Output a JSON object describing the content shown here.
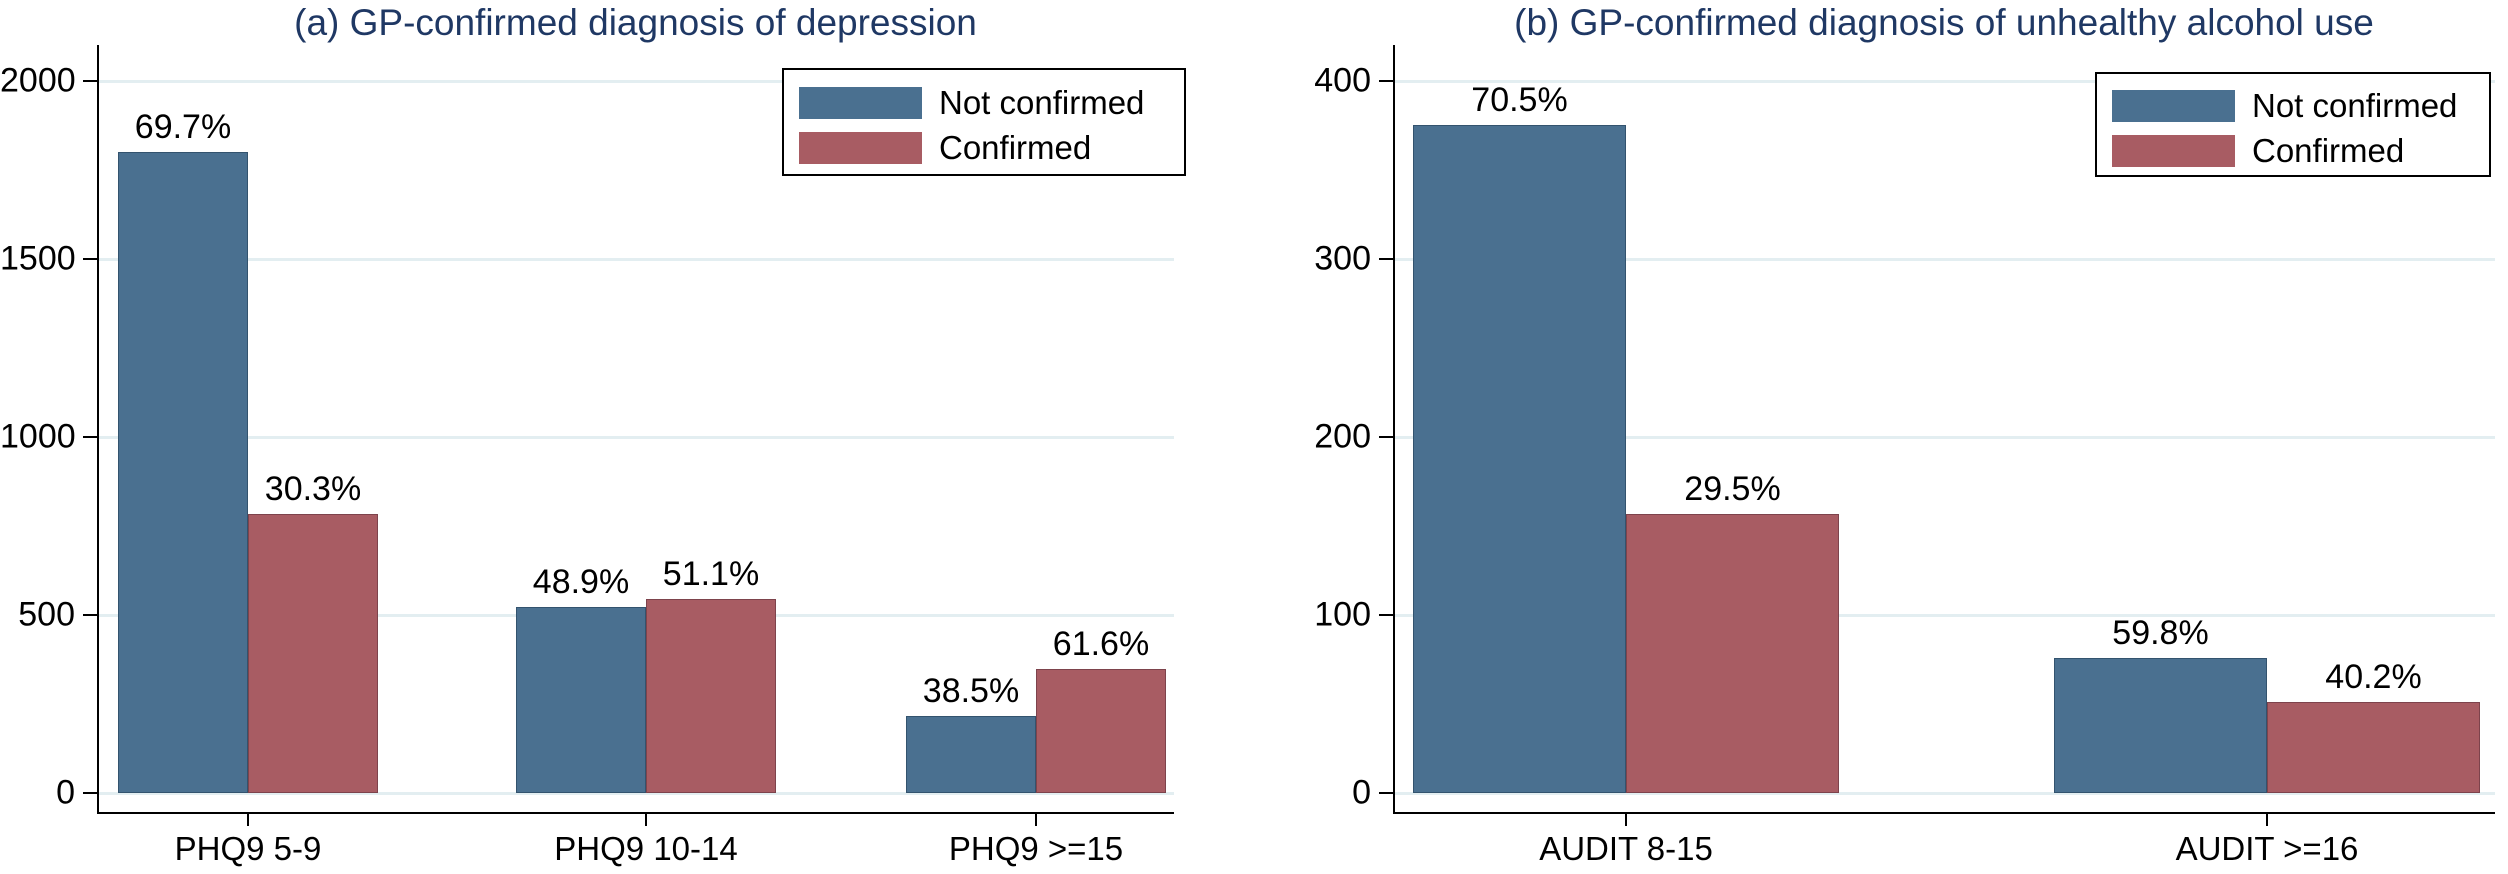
{
  "figure": {
    "background": "#ffffff",
    "title_color": "#1f3864",
    "text_color": "#000000",
    "gridline_color": "#e3eef1",
    "bar_colors": {
      "not_confirmed": "#4a7090",
      "confirmed": "#a85c63"
    },
    "bar_border_colors": {
      "not_confirmed": "#33536e",
      "confirmed": "#7d434c"
    },
    "legend": {
      "position": "top-right",
      "items": [
        {
          "label": "Not confirmed",
          "color_key": "not_confirmed"
        },
        {
          "label": "Confirmed",
          "color_key": "confirmed"
        }
      ]
    }
  },
  "chart_data": [
    {
      "type": "bar",
      "panel": "a",
      "title": "(a) GP-confirmed diagnosis of depression",
      "xlabel": "",
      "ylabel": "",
      "categories": [
        "PHQ9 5-9",
        "PHQ9 10-14",
        "PHQ9 >=15"
      ],
      "series": [
        {
          "name": "Not confirmed",
          "color_key": "not_confirmed",
          "values": [
            1800,
            523,
            217
          ],
          "bar_labels": [
            "69.7%",
            "48.9%",
            "38.5%"
          ]
        },
        {
          "name": "Confirmed",
          "color_key": "confirmed",
          "values": [
            783,
            546,
            347
          ],
          "bar_labels": [
            "30.3%",
            "51.1%",
            "61.6%"
          ]
        }
      ],
      "yticks": [
        0,
        500,
        1000,
        1500,
        2000
      ],
      "ylim": [
        0,
        2100
      ],
      "grid": true,
      "legend_position": "top-right"
    },
    {
      "type": "bar",
      "panel": "b",
      "title": "(b) GP-confirmed diagnosis of unhealthy alcohol use",
      "xlabel": "",
      "ylabel": "",
      "categories": [
        "AUDIT 8-15",
        "AUDIT >=16"
      ],
      "series": [
        {
          "name": "Not confirmed",
          "color_key": "not_confirmed",
          "values": [
            375,
            76
          ],
          "bar_labels": [
            "70.5%",
            "59.8%"
          ]
        },
        {
          "name": "Confirmed",
          "color_key": "confirmed",
          "values": [
            157,
            51
          ],
          "bar_labels": [
            "29.5%",
            "40.2%"
          ]
        }
      ],
      "yticks": [
        0,
        100,
        200,
        300,
        400
      ],
      "ylim": [
        0,
        420
      ],
      "grid": true,
      "legend_position": "top-right"
    }
  ]
}
